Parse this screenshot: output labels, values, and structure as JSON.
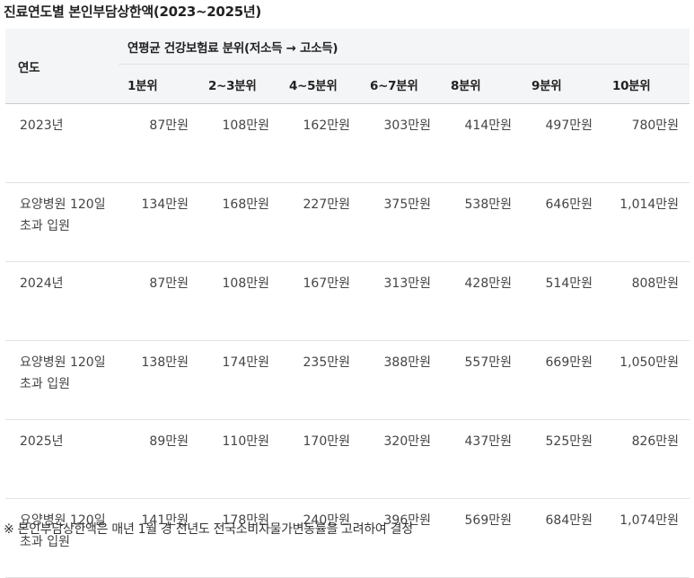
{
  "title": "진료연도별 본인부담상한액(2023~2025년)",
  "header": {
    "year_col": "연도",
    "group": "연평균 건강보험료 분위(저소득 → 고소득)",
    "deciles": [
      "1분위",
      "2~3분위",
      "4~5분위",
      "6~7분위",
      "8분위",
      "9분위",
      "10분위"
    ]
  },
  "rows": [
    {
      "label": "2023년",
      "values": [
        "87만원",
        "108만원",
        "162만원",
        "303만원",
        "414만원",
        "497만원",
        "780만원"
      ]
    },
    {
      "label": "요양병원 120일 초과 입원",
      "values": [
        "134만원",
        "168만원",
        "227만원",
        "375만원",
        "538만원",
        "646만원",
        "1,014만원"
      ]
    },
    {
      "label": "2024년",
      "values": [
        "87만원",
        "108만원",
        "167만원",
        "313만원",
        "428만원",
        "514만원",
        "808만원"
      ]
    },
    {
      "label": "요양병원 120일 초과 입원",
      "values": [
        "138만원",
        "174만원",
        "235만원",
        "388만원",
        "557만원",
        "669만원",
        "1,050만원"
      ]
    },
    {
      "label": "2025년",
      "values": [
        "89만원",
        "110만원",
        "170만원",
        "320만원",
        "437만원",
        "525만원",
        "826만원"
      ]
    },
    {
      "label": "요양병원 120일 초과 입원",
      "values": [
        "141만원",
        "178만원",
        "240만원",
        "396만원",
        "569만원",
        "684만원",
        "1,074만원"
      ]
    }
  ],
  "footnote": "※ 본인부담상한액은 매년 1월 경 전년도 전국소비자물가변동률을 고려하여 결정"
}
